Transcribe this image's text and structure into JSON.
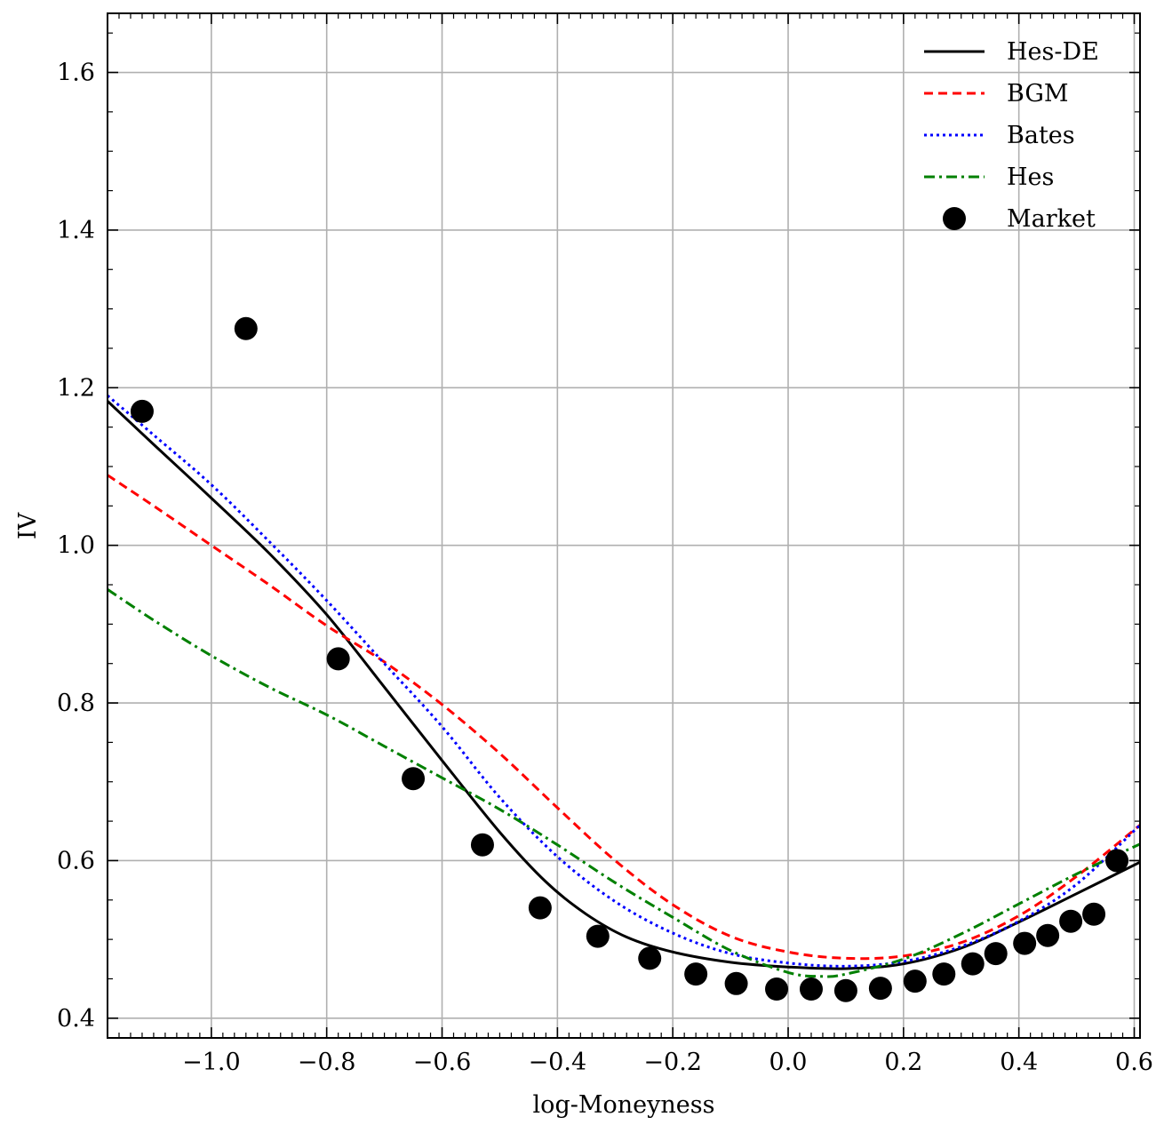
{
  "chart_data": {
    "type": "line",
    "title": "",
    "xlabel": "log-Moneyness",
    "ylabel": "IV",
    "xlim": [
      -1.18,
      0.61
    ],
    "ylim": [
      0.375,
      1.675
    ],
    "grid": true,
    "legend_position": "top-right",
    "x_ticks": [
      -1.0,
      -0.8,
      -0.6,
      -0.4,
      -0.2,
      0.0,
      0.2,
      0.4,
      0.6
    ],
    "x_tick_labels": [
      "−1.0",
      "−0.8",
      "−0.6",
      "−0.4",
      "−0.2",
      "0.0",
      "0.2",
      "0.4",
      "0.6"
    ],
    "y_ticks": [
      0.4,
      0.6,
      0.8,
      1.0,
      1.2,
      1.4,
      1.6
    ],
    "y_tick_labels": [
      "0.4",
      "0.6",
      "0.8",
      "1.0",
      "1.2",
      "1.4",
      "1.6"
    ],
    "series": [
      {
        "name": "Hes-DE",
        "color": "#000000",
        "style": "solid",
        "x": [
          -1.18,
          -1.1,
          -1.0,
          -0.9,
          -0.8,
          -0.7,
          -0.6,
          -0.5,
          -0.42,
          -0.35,
          -0.28,
          -0.2,
          -0.1,
          0.0,
          0.1,
          0.2,
          0.3,
          0.4,
          0.5,
          0.61
        ],
        "y": [
          1.183,
          1.128,
          1.06,
          0.99,
          0.912,
          0.82,
          0.727,
          0.636,
          0.573,
          0.532,
          0.503,
          0.484,
          0.471,
          0.465,
          0.463,
          0.469,
          0.489,
          0.522,
          0.558,
          0.598
        ]
      },
      {
        "name": "BGM",
        "color": "#ff0000",
        "style": "dashed",
        "x": [
          -1.18,
          -1.1,
          -1.0,
          -0.9,
          -0.8,
          -0.7,
          -0.6,
          -0.5,
          -0.4,
          -0.3,
          -0.2,
          -0.1,
          0.0,
          0.1,
          0.2,
          0.3,
          0.4,
          0.5,
          0.61
        ],
        "y": [
          1.089,
          1.05,
          1.0,
          0.95,
          0.898,
          0.852,
          0.798,
          0.736,
          0.667,
          0.6,
          0.544,
          0.504,
          0.484,
          0.476,
          0.479,
          0.496,
          0.53,
          0.58,
          0.645
        ]
      },
      {
        "name": "Bates",
        "color": "#0000ff",
        "style": "dotted",
        "x": [
          -1.18,
          -1.1,
          -1.0,
          -0.9,
          -0.8,
          -0.7,
          -0.6,
          -0.5,
          -0.4,
          -0.3,
          -0.2,
          -0.1,
          0.0,
          0.1,
          0.2,
          0.3,
          0.4,
          0.5,
          0.61
        ],
        "y": [
          1.19,
          1.14,
          1.077,
          1.005,
          0.93,
          0.85,
          0.77,
          0.68,
          0.605,
          0.548,
          0.508,
          0.482,
          0.47,
          0.466,
          0.472,
          0.491,
          0.523,
          0.57,
          0.645
        ]
      },
      {
        "name": "Hes",
        "color": "#008000",
        "style": "dashdot",
        "x": [
          -1.18,
          -1.1,
          -1.0,
          -0.9,
          -0.8,
          -0.7,
          -0.6,
          -0.5,
          -0.4,
          -0.3,
          -0.2,
          -0.1,
          0.0,
          0.06,
          0.1,
          0.2,
          0.3,
          0.4,
          0.5,
          0.61
        ],
        "y": [
          0.944,
          0.905,
          0.86,
          0.82,
          0.785,
          0.745,
          0.705,
          0.665,
          0.62,
          0.572,
          0.528,
          0.486,
          0.458,
          0.453,
          0.456,
          0.475,
          0.507,
          0.545,
          0.583,
          0.621
        ]
      },
      {
        "name": "Market",
        "color": "#000000",
        "style": "scatter",
        "x": [
          -1.12,
          -0.94,
          -0.78,
          -0.65,
          -0.53,
          -0.43,
          -0.33,
          -0.24,
          -0.16,
          -0.09,
          -0.02,
          0.04,
          0.1,
          0.16,
          0.22,
          0.27,
          0.32,
          0.36,
          0.41,
          0.45,
          0.49,
          0.53,
          0.57
        ],
        "y": [
          1.17,
          1.275,
          0.856,
          0.704,
          0.62,
          0.54,
          0.504,
          0.476,
          0.456,
          0.444,
          0.437,
          0.437,
          0.435,
          0.438,
          0.447,
          0.456,
          0.469,
          0.482,
          0.495,
          0.505,
          0.523,
          0.532,
          0.6
        ]
      }
    ]
  }
}
